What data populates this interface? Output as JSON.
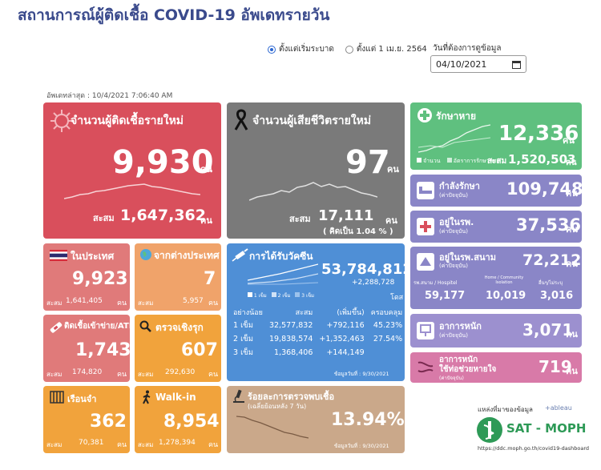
{
  "title": "สถานการณ์ผู้ติดเชื้อ COVID-19 อัพเดทรายวัน",
  "filters": {
    "option1": "ตั้งแต่เริ่มระบาด",
    "option2": "ตั้งแต่ 1 เม.ย. 2564",
    "date_label": "วันที่ต้องการดูข้อมูล",
    "date_value": "04/10/2021",
    "selected": "option1"
  },
  "updated": "อัพเดทล่าสุด : 10/4/2021 7:06:40 AM",
  "unit_people": "คน",
  "new_cases": {
    "label": "จำนวนผู้ติดเชื้อรายใหม่",
    "value": "9,930",
    "cum_label": "สะสม",
    "cum_value": "1,647,362"
  },
  "new_deaths": {
    "label": "จำนวนผู้เสียชีวิตรายใหม่",
    "value": "97",
    "cum_label": "สะสม",
    "cum_value": "17,111",
    "pct": "( คิดเป็น  1.04 % )"
  },
  "recovered": {
    "label": "รักษาหาย",
    "value": "12,336",
    "legend1": "จำนวน",
    "legend2": "อัตราการรักษาหาย",
    "cum_label": "สะสม",
    "cum_value": "1,520,503"
  },
  "in_treatment": {
    "label": "กำลังรักษา",
    "sub": "(ค่าปัจจุบัน)",
    "value": "109,748"
  },
  "in_hospital": {
    "label": "อยู่ในรพ.",
    "sub": "(ค่าปัจจุบัน)",
    "value": "37,536"
  },
  "field_hospital": {
    "label": "อยู่ในรพ.สนาม",
    "sub": "(ค่าปัจจุบัน)",
    "value": "72,212",
    "col1_label": "รพ.สนาม / Hospitel",
    "col1_value": "59,177",
    "col2_label": "Home / Community Isolation",
    "col2_value": "10,019",
    "col3_label": "อื่นๆ/ไม่ระบุ",
    "col3_value": "3,016"
  },
  "severe": {
    "label": "อาการหนัก",
    "sub": "(ค่าปัจจุบัน)",
    "value": "3,071"
  },
  "ventilator": {
    "label": "อาการหนัก",
    "label2": "ใช้ท่อช่วยหายใจ",
    "sub": "(ค่าปัจจุบัน)",
    "value": "719"
  },
  "domestic": {
    "label": "ในประเทศ",
    "value": "9,923",
    "cum_label": "สะสม",
    "cum_value": "1,641,405"
  },
  "imported": {
    "label": "จากต่างประเทศ",
    "value": "7",
    "cum_label": "สะสม",
    "cum_value": "5,957"
  },
  "prison": {
    "label": "ติดเชื้อเข้าข่าย/ATK",
    "value": "1,743",
    "cum_label": "สะสม",
    "cum_value": "174,820"
  },
  "proactive": {
    "label": "ตรวจเชิงรุก",
    "value": "607",
    "cum_label": "สะสม",
    "cum_value": "292,630"
  },
  "jail": {
    "label": "เรือนจำ",
    "value": "362",
    "cum_label": "สะสม",
    "cum_value": "70,381"
  },
  "walkin": {
    "label": "Walk-in",
    "value": "8,954",
    "cum_label": "สะสม",
    "cum_value": "1,278,394"
  },
  "vaccine": {
    "label": "การได้รับวัคซีน",
    "total": "53,784,812",
    "added": "+2,288,728",
    "dose_unit": "โดส",
    "legend": [
      "1 เข็ม",
      "2 เข็ม",
      "3 เข็ม"
    ],
    "headers": [
      "อย่างน้อย",
      "สะสม",
      "(เพิ่มขึ้น)",
      "ครอบคลุม"
    ],
    "rows": [
      [
        "1 เข็ม",
        "32,577,832",
        "+792,116",
        "45.23%"
      ],
      [
        "2 เข็ม",
        "19,838,574",
        "+1,352,463",
        "27.54%"
      ],
      [
        "3 เข็ม",
        "1,368,406",
        "+144,149",
        ""
      ]
    ],
    "footnote": "ข้อมูลวันที่ : 9/30/2021"
  },
  "positive_rate": {
    "label": "ร้อยละการตรวจพบเชื้อ",
    "sub": "(เฉลี่ยย้อนหลัง 7 วัน)",
    "value": "13.94%",
    "footnote": "ข้อมูลวันที่ : 9/30/2021"
  },
  "source": {
    "label": "แหล่งที่มาของข้อมูล",
    "tableau": "+ableau",
    "logo_text": "SAT - MOPH",
    "url": "https://ddc.moph.go.th/covid19-dashboard"
  },
  "colors": {
    "new_cases": "#d94f5c",
    "deaths": "#7a7a7a",
    "recovered": "#5fc07f",
    "vaccine": "#4f8fd6",
    "orange": "#f1a33c",
    "logo_green": "#2e9a57"
  }
}
